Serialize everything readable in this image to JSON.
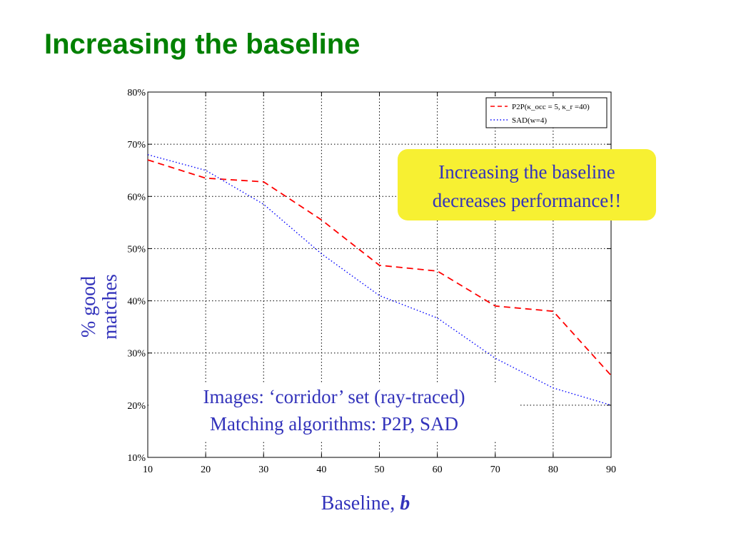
{
  "title": "Increasing the baseline",
  "callout": {
    "line1": "Increasing the baseline",
    "line2": "decreases performance!!"
  },
  "info": {
    "line1": "Images: ‘corridor’ set (ray-traced)",
    "line2": "Matching algorithms: P2P, SAD"
  },
  "ylabel": {
    "line1": "% good",
    "line2": "matches"
  },
  "xlabel": {
    "text": "Baseline, ",
    "var": "b"
  },
  "chart_data": {
    "type": "line",
    "x": [
      10,
      20,
      30,
      40,
      50,
      60,
      70,
      80,
      90
    ],
    "xlim": [
      10,
      90
    ],
    "ylim": [
      10,
      80
    ],
    "xticks": [
      10,
      20,
      30,
      40,
      50,
      60,
      70,
      80,
      90
    ],
    "yticks": [
      10,
      20,
      30,
      40,
      50,
      60,
      70,
      80
    ],
    "ytick_labels": [
      "10%",
      "20%",
      "30%",
      "40%",
      "50%",
      "60%",
      "70%",
      "80%"
    ],
    "grid": true,
    "legend_position": "top-right",
    "series": [
      {
        "name": "P2P(κ_occ = 5, κ_r =40)",
        "color": "#ff0000",
        "style": "dashed",
        "values": [
          67,
          63.5,
          62.8,
          55.5,
          46.8,
          45.7,
          39,
          38,
          25.7
        ]
      },
      {
        "name": "SAD(w=4)",
        "color": "#0000ff",
        "style": "dotted",
        "values": [
          68,
          65,
          58.5,
          49,
          41,
          36.7,
          29,
          23.3,
          20
        ]
      }
    ]
  }
}
